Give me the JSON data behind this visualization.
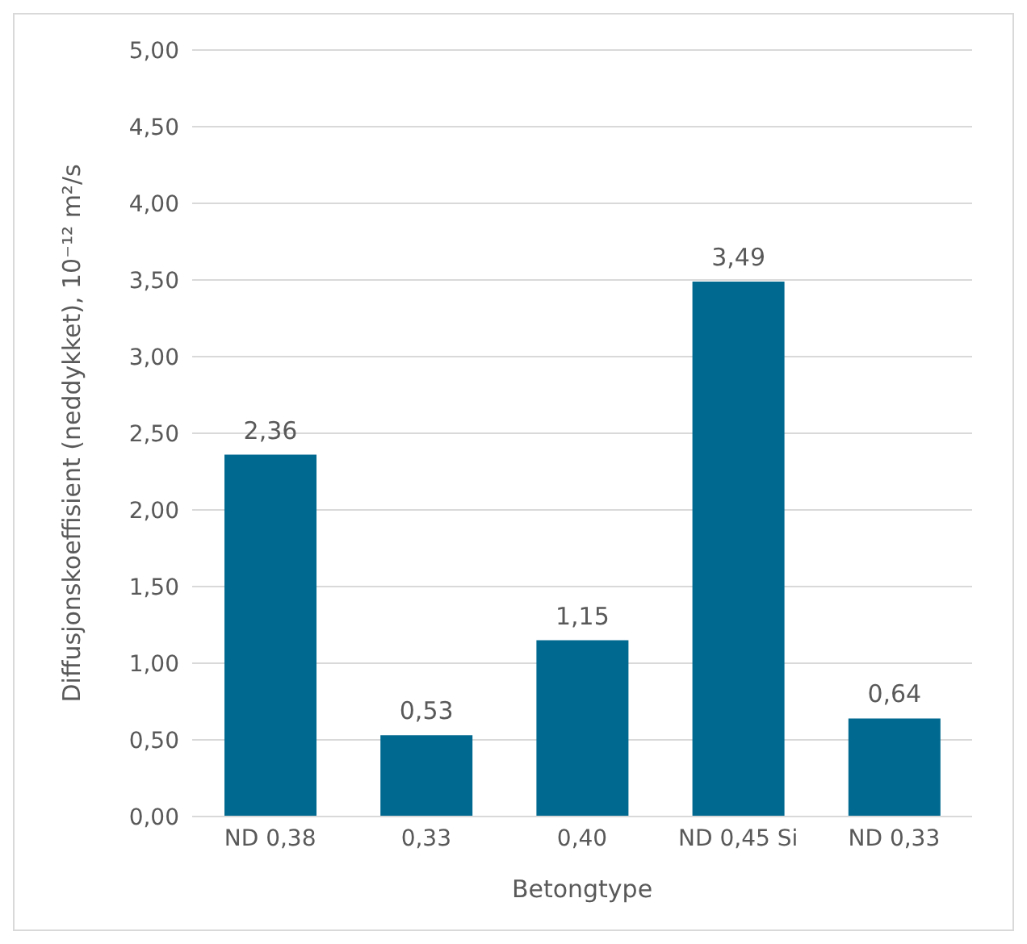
{
  "chart_data": {
    "type": "bar",
    "xlabel": "Betongtype",
    "ylabel": "Diffusjonskoeffisient (neddykket), 10⁻¹² m²/s",
    "categories": [
      "ND 0,38",
      "0,33",
      "0,40",
      "ND 0,45 Si",
      "ND 0,33"
    ],
    "values": [
      2.36,
      0.53,
      1.15,
      3.49,
      0.64
    ],
    "value_labels": [
      "2,36",
      "0,53",
      "1,15",
      "3,49",
      "0,64"
    ],
    "color": "#00698f",
    "ylim": [
      0,
      5
    ],
    "yticks": [
      {
        "value": 0,
        "label": "0,00"
      },
      {
        "value": 0.5,
        "label": "0,50"
      },
      {
        "value": 1,
        "label": "1,00"
      },
      {
        "value": 1.5,
        "label": "1,50"
      },
      {
        "value": 2,
        "label": "2,00"
      },
      {
        "value": 2.5,
        "label": "2,50"
      },
      {
        "value": 3,
        "label": "3,00"
      },
      {
        "value": 3.5,
        "label": "3,50"
      },
      {
        "value": 4,
        "label": "4,00"
      },
      {
        "value": 4.5,
        "label": "4,50"
      },
      {
        "value": 5,
        "label": "5,00"
      }
    ],
    "grid": "y"
  }
}
